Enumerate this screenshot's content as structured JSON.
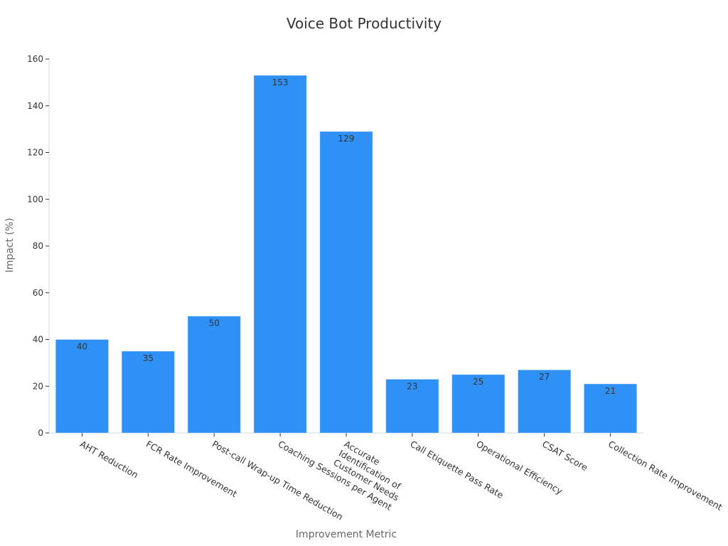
{
  "chart_data": {
    "type": "bar",
    "title": "Voice Bot Productivity",
    "xlabel": "Improvement Metric",
    "ylabel": "Impact (%)",
    "categories": [
      "AHT Reduction",
      "FCR Rate Improvement",
      "Post-call Wrap-up Time Reduction",
      "Coaching Sessions per Agent",
      "Accurate Identification of Customer Needs",
      "Call Etiquette Pass Rate",
      "Operational Efficiency",
      "CSAT Score",
      "Collection Rate Improvement"
    ],
    "category_lines": [
      [
        "AHT Reduction"
      ],
      [
        "FCR Rate Improvement"
      ],
      [
        "Post-call Wrap-up Time Reduction"
      ],
      [
        "Coaching Sessions per Agent"
      ],
      [
        "Accurate",
        "Identification of",
        "Customer Needs"
      ],
      [
        "Call Etiquette Pass Rate"
      ],
      [
        "Operational Efficiency"
      ],
      [
        "CSAT Score"
      ],
      [
        "Collection Rate Improvement"
      ]
    ],
    "values": [
      40,
      35,
      50,
      153,
      129,
      23,
      25,
      27,
      21
    ],
    "ylim": [
      0,
      160
    ],
    "yticks": [
      0,
      20,
      40,
      60,
      80,
      100,
      120,
      140,
      160
    ],
    "grid": false,
    "bar_color": "#2f91f5",
    "data_labels": true
  }
}
